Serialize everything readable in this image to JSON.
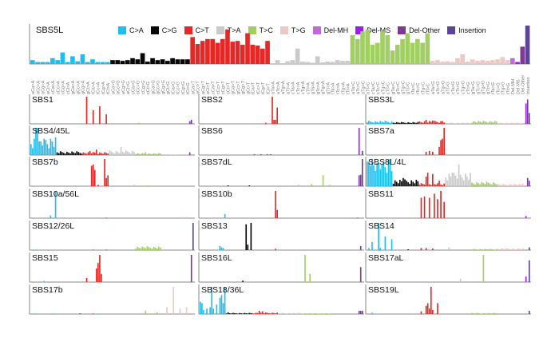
{
  "chart_data": {
    "type": "bar",
    "legend_placement": "top",
    "legend": [
      {
        "label": "C>A",
        "color": "#1EBFF0"
      },
      {
        "label": "C>G",
        "color": "#050708"
      },
      {
        "label": "C>T",
        "color": "#E62725"
      },
      {
        "label": "T>A",
        "color": "#CBCACB"
      },
      {
        "label": "T>C",
        "color": "#A1CF64"
      },
      {
        "label": "T>G",
        "color": "#EDC8C5"
      },
      {
        "label": "Del-MH",
        "color": "#C06AD6"
      },
      {
        "label": "Del-MS",
        "color": "#9B1FF0"
      },
      {
        "label": "Del-Other",
        "color": "#7D3A91"
      },
      {
        "label": "Insertion",
        "color": "#5C4595"
      }
    ],
    "categories": [
      "aCa>A",
      "aCc>A",
      "aCg>A",
      "aCt>A",
      "cCa>A",
      "cCc>A",
      "cCg>A",
      "cCt>A",
      "gCa>A",
      "gCc>A",
      "gCg>A",
      "gCt>A",
      "tCa>A",
      "tCc>A",
      "tCg>A",
      "tCt>A",
      "aCa>G",
      "aCc>G",
      "aCg>G",
      "aCt>G",
      "cCa>G",
      "cCc>G",
      "cCg>G",
      "cCt>G",
      "gCa>G",
      "gCc>G",
      "gCg>G",
      "gCt>G",
      "tCa>G",
      "tCc>G",
      "tCg>G",
      "tCt>G",
      "aCa>T",
      "aCc>T",
      "aCg>T",
      "aCt>T",
      "cCa>T",
      "cCc>T",
      "cCg>T",
      "cCt>T",
      "gCa>T",
      "gCc>T",
      "gCg>T",
      "gCt>T",
      "tCa>T",
      "tCc>T",
      "tCg>T",
      "tCt>T",
      "aTa>A",
      "aTc>A",
      "aTg>A",
      "aTt>A",
      "cTa>A",
      "cTc>A",
      "cTg>A",
      "cTt>A",
      "gTa>A",
      "gTc>A",
      "gTg>A",
      "gTt>A",
      "tTa>A",
      "tTc>A",
      "tTg>A",
      "tTt>A",
      "aTa>C",
      "aTc>C",
      "aTg>C",
      "aTt>C",
      "cTa>C",
      "cTc>C",
      "cTg>C",
      "cTt>C",
      "gTa>C",
      "gTc>C",
      "gTg>C",
      "gTt>C",
      "tTa>C",
      "tTc>C",
      "tTg>C",
      "tTt>C",
      "aTa>G",
      "aTc>G",
      "aTg>G",
      "aTt>G",
      "cTa>G",
      "cTc>G",
      "cTg>G",
      "cTt>G",
      "gTa>G",
      "gTc>G",
      "gTg>G",
      "gTt>G",
      "tTa>G",
      "tTc>G",
      "tTg>G",
      "tTt>G",
      "Del-MH",
      "Del-MS",
      "Del-Other",
      "Insertion"
    ],
    "top_panel": {
      "name": "SBS5L",
      "values": [
        0.1,
        0.05,
        0.05,
        0.05,
        0.15,
        0.1,
        0.3,
        0.05,
        0.2,
        0.07,
        0.25,
        0.05,
        0.12,
        0.05,
        0.05,
        0.05,
        0.1,
        0.1,
        0.08,
        0.1,
        0.15,
        0.12,
        0.28,
        0.06,
        0.15,
        0.1,
        0.12,
        0.08,
        0.15,
        0.12,
        0.12,
        0.12,
        0.7,
        0.52,
        0.6,
        0.65,
        0.65,
        0.55,
        0.65,
        0.9,
        0.58,
        0.6,
        0.5,
        0.8,
        0.5,
        0.48,
        0.4,
        0.6,
        0.02,
        0.1,
        0.02,
        0.07,
        0.1,
        0.4,
        0.06,
        0.05,
        0.03,
        0.2,
        0.04,
        0.06,
        0.05,
        0.1,
        0.08,
        0.08,
        0.75,
        0.65,
        0.85,
        0.9,
        0.5,
        0.55,
        0.85,
        0.75,
        0.35,
        0.5,
        0.65,
        0.8,
        0.55,
        0.65,
        0.55,
        0.8,
        0.08,
        0.1,
        0.06,
        0.07,
        0.05,
        0.15,
        0.25,
        0.06,
        0.12,
        0.08,
        0.1,
        0.08,
        0.1,
        0.12,
        0.18,
        0.1,
        0.15,
        0.05,
        0.45,
        1.0
      ]
    },
    "panels": [
      {
        "name": "SBS1",
        "base": [
          0,
          0,
          0,
          0,
          0,
          0
        ],
        "bars": [
          [
            2,
            0.02
          ],
          [
            34,
            1
          ],
          [
            38,
            0.5
          ],
          [
            42,
            0.65
          ],
          [
            46,
            0.35
          ],
          [
            66,
            0.04
          ],
          [
            97,
            0.1
          ],
          [
            98,
            0.15
          ]
        ]
      },
      {
        "name": "SBS2",
        "base": [
          0,
          0,
          0,
          0,
          0,
          0
        ],
        "bars": [
          [
            40,
            0.04
          ],
          [
            44,
            1
          ],
          [
            45,
            0.15
          ],
          [
            46,
            0.15
          ],
          [
            47,
            0.6
          ]
        ]
      },
      {
        "name": "SBS3L",
        "base": [
          0.08,
          0.05,
          0.08,
          0.03,
          0.08,
          0.03
        ],
        "bars": [
          [
            36,
            0.15
          ],
          [
            40,
            0.12
          ],
          [
            46,
            0.1
          ],
          [
            97,
            0.75
          ],
          [
            98,
            0.9
          ],
          [
            99,
            0.4
          ]
        ]
      },
      {
        "name": "SBS4/45L",
        "base": [
          0.5,
          0.1,
          0.08,
          0.12,
          0.05,
          0.01
        ],
        "bars": [
          [
            3,
            1
          ],
          [
            4,
            1
          ],
          [
            5,
            0.5
          ],
          [
            8,
            0.6
          ],
          [
            10,
            0.4
          ],
          [
            13,
            0.5
          ],
          [
            36,
            0.15
          ],
          [
            40,
            0.2
          ],
          [
            55,
            0.3
          ],
          [
            62,
            0.15
          ],
          [
            70,
            0.1
          ],
          [
            97,
            0.1
          ]
        ]
      },
      {
        "name": "SBS6",
        "base": [
          0,
          0,
          0,
          0,
          0,
          0
        ],
        "bars": [
          [
            33,
            0.03
          ],
          [
            37,
            0.03
          ],
          [
            41,
            0.03
          ],
          [
            43,
            0.03
          ],
          [
            97,
            1
          ],
          [
            99,
            0.15
          ]
        ]
      },
      {
        "name": "SBS7a",
        "base": [
          0,
          0,
          0,
          0,
          0,
          0
        ],
        "bars": [
          [
            36,
            0.12
          ],
          [
            38,
            0.15
          ],
          [
            40,
            0.12
          ],
          [
            44,
            0.3
          ],
          [
            45,
            0.55
          ],
          [
            46,
            0.6
          ],
          [
            47,
            1
          ],
          [
            48,
            0.08
          ]
        ]
      },
      {
        "name": "SBS7b",
        "base": [
          0,
          0,
          0,
          0,
          0,
          0
        ],
        "bars": [
          [
            37,
            0.75
          ],
          [
            38,
            0.8
          ],
          [
            39,
            0.6
          ],
          [
            41,
            0.05
          ],
          [
            45,
            1
          ],
          [
            46,
            0.3
          ],
          [
            47,
            0.4
          ],
          [
            63,
            0.05
          ],
          [
            72,
            0.03
          ]
        ]
      },
      {
        "name": "SBS7dL",
        "base": [
          0,
          0,
          0,
          0,
          0,
          0
        ],
        "bars": [
          [
            17,
            0.03
          ],
          [
            30,
            0.03
          ],
          [
            60,
            0.05
          ],
          [
            68,
            0.08
          ],
          [
            75,
            0.4
          ],
          [
            79,
            0.05
          ],
          [
            97,
            0.4
          ],
          [
            98,
            0.42
          ],
          [
            99,
            1
          ]
        ]
      },
      {
        "name": "SBS8L/4L",
        "base": [
          0.7,
          0.18,
          0.08,
          0.35,
          0.12,
          0.06
        ],
        "bars": [
          [
            1,
            0.9
          ],
          [
            2,
            0.75
          ],
          [
            6,
            0.85
          ],
          [
            9,
            0.8
          ],
          [
            10,
            0.9
          ],
          [
            14,
            1
          ],
          [
            22,
            0.3
          ],
          [
            36,
            0.35
          ],
          [
            37,
            0.5
          ],
          [
            40,
            0.45
          ],
          [
            44,
            0.2
          ],
          [
            56,
            0.8
          ],
          [
            52,
            0.5
          ],
          [
            95,
            0.1
          ],
          [
            98,
            0.3
          ],
          [
            99,
            0.2
          ]
        ]
      },
      {
        "name": "SBS10a/56L",
        "base": [
          0,
          0,
          0,
          0,
          0,
          0
        ],
        "bars": [
          [
            12,
            0.1
          ],
          [
            15,
            1
          ],
          [
            46,
            0.02
          ],
          [
            92,
            0.04
          ],
          [
            95,
            0.04
          ]
        ]
      },
      {
        "name": "SBS10b",
        "base": [
          0,
          0,
          0,
          0,
          0,
          0
        ],
        "bars": [
          [
            15,
            0.15
          ],
          [
            46,
            1
          ],
          [
            47,
            0.3
          ],
          [
            96,
            0.03
          ]
        ]
      },
      {
        "name": "SBS11",
        "base": [
          0,
          0,
          0,
          0,
          0,
          0
        ],
        "bars": [
          [
            33,
            0.75
          ],
          [
            35,
            0.8
          ],
          [
            38,
            0.75
          ],
          [
            41,
            0.9
          ],
          [
            43,
            0.7
          ],
          [
            45,
            1
          ],
          [
            47,
            0.6
          ],
          [
            97,
            0.08
          ]
        ]
      },
      {
        "name": "SBS12/26L",
        "base": [
          0,
          0,
          0,
          0,
          0.1,
          0
        ],
        "bars": [
          [
            3,
            0.02
          ],
          [
            38,
            0.02
          ],
          [
            46,
            0.02
          ],
          [
            99,
            1
          ]
        ]
      },
      {
        "name": "SBS13",
        "base": [
          0,
          0,
          0,
          0,
          0,
          0
        ],
        "bars": [
          [
            12,
            0.15
          ],
          [
            13,
            0.1
          ],
          [
            14,
            0.08
          ],
          [
            28,
            0.95
          ],
          [
            29,
            0.2
          ],
          [
            31,
            1
          ],
          [
            46,
            0.05
          ],
          [
            98,
            0.15
          ]
        ]
      },
      {
        "name": "SBS14",
        "base": [
          0,
          0,
          0,
          0,
          0.03,
          0.05
        ],
        "bars": [
          [
            1,
            0.07
          ],
          [
            3,
            0.3
          ],
          [
            7,
            1
          ],
          [
            8,
            0.08
          ],
          [
            11,
            0.5
          ],
          [
            15,
            0.4
          ],
          [
            25,
            0.03
          ],
          [
            33,
            0.08
          ],
          [
            36,
            0.08
          ],
          [
            40,
            0.06
          ],
          [
            50,
            0.1
          ],
          [
            99,
            0.1
          ]
        ]
      },
      {
        "name": "SBS15",
        "base": [
          0,
          0,
          0,
          0,
          0,
          0
        ],
        "bars": [
          [
            8,
            0.04
          ],
          [
            34,
            0.15
          ],
          [
            40,
            0.5
          ],
          [
            41,
            0.7
          ],
          [
            42,
            1
          ],
          [
            43,
            0.3
          ],
          [
            98,
            1
          ]
        ]
      },
      {
        "name": "SBS16L",
        "base": [
          0,
          0,
          0,
          0,
          0,
          0
        ],
        "bars": [
          [
            26,
            0.05
          ],
          [
            64,
            1
          ],
          [
            67,
            0.3
          ],
          [
            98,
            0.55
          ]
        ]
      },
      {
        "name": "SBS17aL",
        "base": [
          0,
          0,
          0,
          0,
          0,
          0
        ],
        "bars": [
          [
            57,
            0.12
          ],
          [
            71,
            1
          ],
          [
            97,
            0.2
          ],
          [
            99,
            0.8
          ]
        ]
      },
      {
        "name": "SBS17b",
        "base": [
          0,
          0,
          0,
          0,
          0,
          0
        ],
        "bars": [
          [
            2,
            0.02
          ],
          [
            13,
            0.02
          ],
          [
            30,
            0.02
          ],
          [
            38,
            0.02
          ],
          [
            70,
            0.12
          ],
          [
            77,
            0.06
          ],
          [
            83,
            0.25
          ],
          [
            87,
            1
          ],
          [
            91,
            0.2
          ],
          [
            95,
            0.25
          ]
        ]
      },
      {
        "name": "SBS18/36L",
        "base": [
          0,
          0.03,
          0.04,
          0.03,
          0.02,
          0
        ],
        "bars": [
          [
            0,
            0.45
          ],
          [
            1,
            0.4
          ],
          [
            2,
            0.15
          ],
          [
            4,
            0.2
          ],
          [
            6,
            0.25
          ],
          [
            7,
            1
          ],
          [
            8,
            0.2
          ],
          [
            10,
            0.35
          ],
          [
            12,
            0.6
          ],
          [
            13,
            0.7
          ],
          [
            14,
            0.4
          ],
          [
            15,
            1
          ],
          [
            17,
            0.06
          ],
          [
            36,
            0.12
          ],
          [
            38,
            0.1
          ],
          [
            97,
            0.12
          ],
          [
            98,
            0.12
          ],
          [
            99,
            0.12
          ]
        ]
      },
      {
        "name": "SBS19L",
        "base": [
          0,
          0,
          0,
          0,
          0.03,
          0
        ],
        "bars": [
          [
            3,
            0.05
          ],
          [
            33,
            0.1
          ],
          [
            36,
            0.3
          ],
          [
            37,
            0.4
          ],
          [
            38,
            0.2
          ],
          [
            39,
            1
          ],
          [
            40,
            0.15
          ],
          [
            43,
            0.4
          ],
          [
            99,
            0.12
          ]
        ]
      }
    ]
  }
}
